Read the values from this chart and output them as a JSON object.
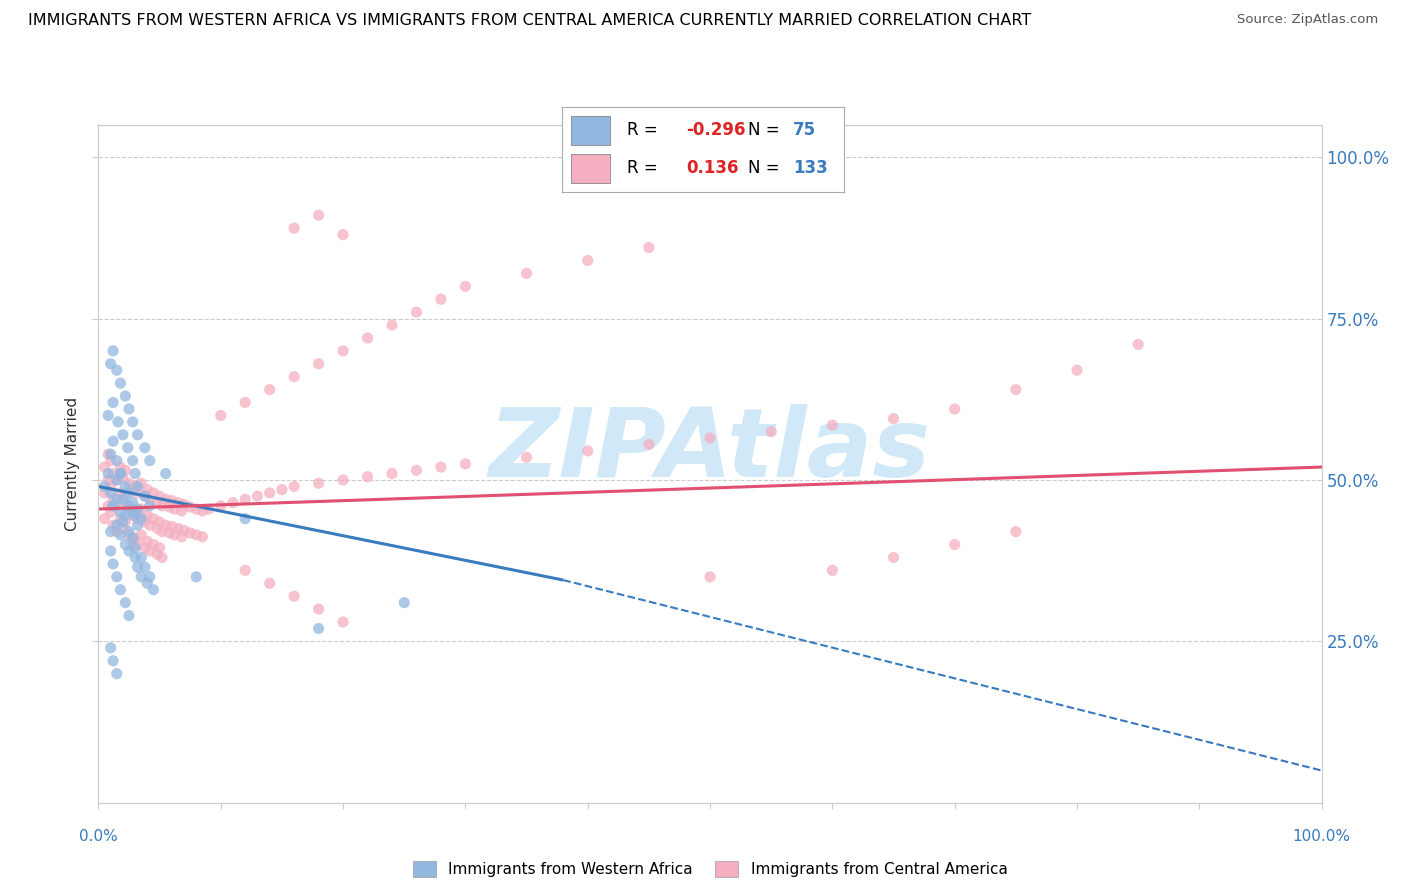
{
  "title": "IMMIGRANTS FROM WESTERN AFRICA VS IMMIGRANTS FROM CENTRAL AMERICA CURRENTLY MARRIED CORRELATION CHART",
  "source": "Source: ZipAtlas.com",
  "ylabel": "Currently Married",
  "legend_blue_r": "-0.296",
  "legend_blue_n": "75",
  "legend_pink_r": "0.136",
  "legend_pink_n": "133",
  "blue_color": "#92b8e0",
  "pink_color": "#f4afc0",
  "watermark_text": "ZIPAtlas",
  "watermark_color": "#d0e8f8",
  "blue_line_color": "#3a7abf",
  "pink_line_color": "#e05070",
  "blue_points_x": [
    0.005,
    0.008,
    0.01,
    0.012,
    0.015,
    0.018,
    0.02,
    0.022,
    0.025,
    0.028,
    0.01,
    0.012,
    0.015,
    0.018,
    0.022,
    0.025,
    0.028,
    0.03,
    0.032,
    0.035,
    0.008,
    0.012,
    0.016,
    0.02,
    0.024,
    0.028,
    0.03,
    0.032,
    0.038,
    0.042,
    0.01,
    0.015,
    0.018,
    0.022,
    0.025,
    0.03,
    0.032,
    0.035,
    0.04,
    0.045,
    0.012,
    0.015,
    0.018,
    0.02,
    0.025,
    0.028,
    0.03,
    0.035,
    0.038,
    0.042,
    0.01,
    0.012,
    0.015,
    0.018,
    0.022,
    0.025,
    0.028,
    0.032,
    0.038,
    0.042,
    0.01,
    0.012,
    0.015,
    0.018,
    0.022,
    0.025,
    0.032,
    0.055,
    0.08,
    0.12,
    0.01,
    0.012,
    0.015,
    0.18,
    0.25
  ],
  "blue_points_y": [
    0.49,
    0.51,
    0.48,
    0.46,
    0.5,
    0.51,
    0.47,
    0.445,
    0.46,
    0.45,
    0.54,
    0.56,
    0.53,
    0.51,
    0.49,
    0.48,
    0.465,
    0.445,
    0.455,
    0.44,
    0.6,
    0.62,
    0.59,
    0.57,
    0.55,
    0.53,
    0.51,
    0.49,
    0.475,
    0.46,
    0.42,
    0.43,
    0.415,
    0.4,
    0.39,
    0.38,
    0.365,
    0.35,
    0.34,
    0.33,
    0.46,
    0.47,
    0.45,
    0.435,
    0.42,
    0.41,
    0.395,
    0.38,
    0.365,
    0.35,
    0.68,
    0.7,
    0.67,
    0.65,
    0.63,
    0.61,
    0.59,
    0.57,
    0.55,
    0.53,
    0.39,
    0.37,
    0.35,
    0.33,
    0.31,
    0.29,
    0.43,
    0.51,
    0.35,
    0.44,
    0.24,
    0.22,
    0.2,
    0.27,
    0.31
  ],
  "pink_points_x": [
    0.005,
    0.008,
    0.01,
    0.012,
    0.015,
    0.018,
    0.02,
    0.022,
    0.025,
    0.028,
    0.03,
    0.032,
    0.035,
    0.038,
    0.04,
    0.042,
    0.045,
    0.048,
    0.05,
    0.052,
    0.055,
    0.058,
    0.06,
    0.062,
    0.065,
    0.068,
    0.07,
    0.075,
    0.08,
    0.085,
    0.005,
    0.008,
    0.01,
    0.012,
    0.015,
    0.018,
    0.02,
    0.022,
    0.025,
    0.028,
    0.03,
    0.032,
    0.035,
    0.038,
    0.04,
    0.042,
    0.045,
    0.048,
    0.05,
    0.052,
    0.055,
    0.058,
    0.06,
    0.062,
    0.065,
    0.068,
    0.07,
    0.075,
    0.08,
    0.085,
    0.005,
    0.008,
    0.01,
    0.012,
    0.015,
    0.018,
    0.02,
    0.022,
    0.025,
    0.028,
    0.03,
    0.032,
    0.035,
    0.038,
    0.04,
    0.042,
    0.045,
    0.048,
    0.05,
    0.052,
    0.09,
    0.1,
    0.11,
    0.12,
    0.13,
    0.14,
    0.15,
    0.16,
    0.18,
    0.2,
    0.22,
    0.24,
    0.26,
    0.28,
    0.3,
    0.35,
    0.4,
    0.45,
    0.5,
    0.55,
    0.6,
    0.65,
    0.7,
    0.75,
    0.8,
    0.85,
    0.1,
    0.12,
    0.14,
    0.16,
    0.18,
    0.2,
    0.22,
    0.24,
    0.26,
    0.28,
    0.3,
    0.35,
    0.4,
    0.45,
    0.12,
    0.14,
    0.16,
    0.18,
    0.2,
    0.6,
    0.65,
    0.7,
    0.75,
    0.5,
    0.16,
    0.18,
    0.2
  ],
  "pink_points_y": [
    0.48,
    0.5,
    0.49,
    0.47,
    0.46,
    0.48,
    0.465,
    0.475,
    0.455,
    0.445,
    0.45,
    0.44,
    0.455,
    0.435,
    0.445,
    0.43,
    0.44,
    0.425,
    0.435,
    0.42,
    0.43,
    0.418,
    0.428,
    0.415,
    0.425,
    0.412,
    0.422,
    0.418,
    0.415,
    0.412,
    0.52,
    0.54,
    0.53,
    0.51,
    0.5,
    0.52,
    0.505,
    0.515,
    0.495,
    0.485,
    0.49,
    0.48,
    0.495,
    0.475,
    0.485,
    0.47,
    0.48,
    0.465,
    0.475,
    0.46,
    0.47,
    0.458,
    0.468,
    0.455,
    0.465,
    0.452,
    0.462,
    0.458,
    0.455,
    0.452,
    0.44,
    0.46,
    0.45,
    0.43,
    0.42,
    0.44,
    0.425,
    0.435,
    0.415,
    0.405,
    0.41,
    0.4,
    0.415,
    0.395,
    0.405,
    0.39,
    0.4,
    0.385,
    0.395,
    0.38,
    0.455,
    0.46,
    0.465,
    0.47,
    0.475,
    0.48,
    0.485,
    0.49,
    0.495,
    0.5,
    0.505,
    0.51,
    0.515,
    0.52,
    0.525,
    0.535,
    0.545,
    0.555,
    0.565,
    0.575,
    0.585,
    0.595,
    0.61,
    0.64,
    0.67,
    0.71,
    0.6,
    0.62,
    0.64,
    0.66,
    0.68,
    0.7,
    0.72,
    0.74,
    0.76,
    0.78,
    0.8,
    0.82,
    0.84,
    0.86,
    0.36,
    0.34,
    0.32,
    0.3,
    0.28,
    0.36,
    0.38,
    0.4,
    0.42,
    0.35,
    0.89,
    0.91,
    0.88
  ],
  "blue_trendline_x0": 0.0,
  "blue_trendline_y0": 0.49,
  "blue_trendline_x_solid_end": 0.38,
  "blue_trendline_y_solid_end": 0.345,
  "blue_trendline_x_dash_end": 1.0,
  "blue_trendline_y_dash_end": 0.05,
  "pink_trendline_x0": 0.0,
  "pink_trendline_y0": 0.455,
  "pink_trendline_x1": 1.0,
  "pink_trendline_y1": 0.52,
  "xmin": 0.0,
  "xmax": 1.0,
  "ymin": 0.0,
  "ymax": 1.05,
  "yticks": [
    0.25,
    0.5,
    0.75,
    1.0
  ],
  "ytick_labels_right": [
    "25.0%",
    "50.0%",
    "75.0%",
    "100.0%"
  ],
  "grid_color": "#cccccc",
  "spine_color": "#cccccc"
}
